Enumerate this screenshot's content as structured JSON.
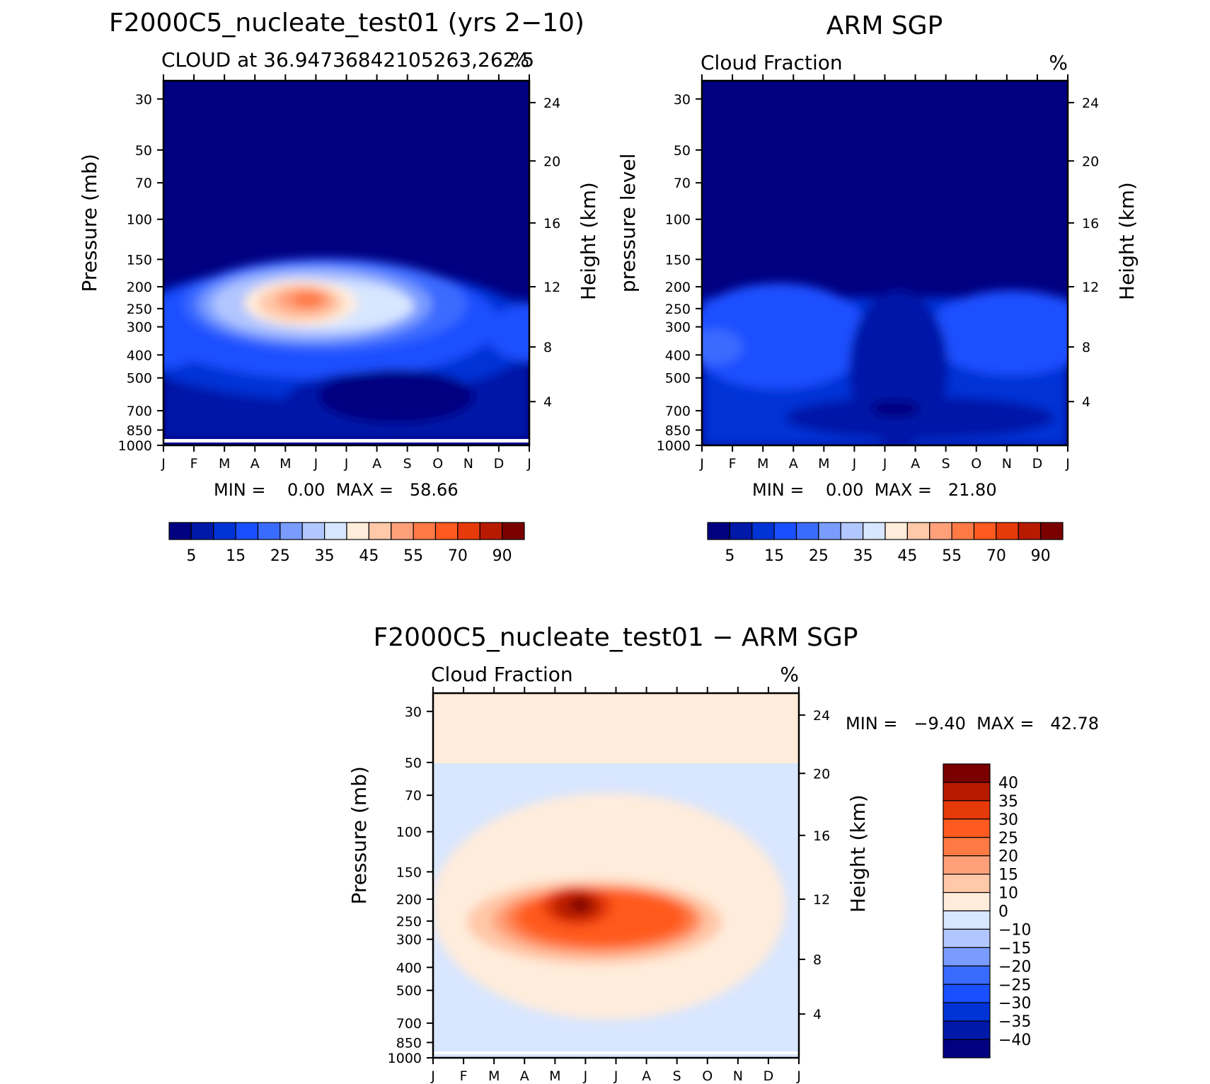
{
  "colors": {
    "abs_levels": [
      "#000080",
      "#0019a8",
      "#0033d6",
      "#1a4fff",
      "#3a6bff",
      "#7a9cff",
      "#b2c6ff",
      "#d8e6ff",
      "#ffecdb",
      "#ffc8a8",
      "#ffa07a",
      "#ff7a45",
      "#ff5a1f",
      "#e63a0a",
      "#b81a00",
      "#7a0000"
    ],
    "diff_levels": [
      "#000080",
      "#0019a8",
      "#0033d6",
      "#1a4fff",
      "#3a6bff",
      "#7a9cff",
      "#b2c6ff",
      "#d8e6ff",
      "#ffecdb",
      "#ffc8a8",
      "#ffa07a",
      "#ff7a45",
      "#ff5a1f",
      "#e63a0a",
      "#b81a00",
      "#7a0000"
    ]
  },
  "chart_data": [
    {
      "type": "heatmap",
      "title": "F2000C5_nucleate_test01 (yrs 2−10)",
      "subtitle_left": "CLOUD at 36.94736842105263,262.5",
      "subtitle_right": "%",
      "ylabel": "Pressure (mb)",
      "ylabel_right": "Height (km)",
      "x_ticks": [
        "J",
        "F",
        "M",
        "A",
        "M",
        "J",
        "J",
        "A",
        "S",
        "O",
        "N",
        "D",
        "J"
      ],
      "y_ticks": [
        "30",
        "50",
        "70",
        "100",
        "150",
        "200",
        "250",
        "300",
        "400",
        "500",
        "700",
        "850",
        "1000"
      ],
      "y_ticks_right": [
        "24",
        "20",
        "16",
        "12",
        "8",
        "4"
      ],
      "stats": "MIN =    0.00  MAX =   58.66",
      "colorbar_labels": [
        "5",
        "15",
        "25",
        "35",
        "45",
        "55",
        "70",
        "90"
      ],
      "peak_month": "Jun",
      "peak_pressure": 250,
      "peak_value": 58.66
    },
    {
      "type": "heatmap",
      "title": "ARM SGP",
      "subtitle_left": "Cloud Fraction",
      "subtitle_right": "%",
      "ylabel": "pressure level",
      "ylabel_right": "Height (km)",
      "x_ticks": [
        "J",
        "F",
        "M",
        "A",
        "M",
        "J",
        "J",
        "A",
        "S",
        "O",
        "N",
        "D",
        "J"
      ],
      "y_ticks": [
        "30",
        "50",
        "70",
        "100",
        "150",
        "200",
        "250",
        "300",
        "400",
        "500",
        "700",
        "850",
        "1000"
      ],
      "y_ticks_right": [
        "24",
        "20",
        "16",
        "12",
        "8",
        "4"
      ],
      "stats": "MIN =    0.00  MAX =   21.80",
      "colorbar_labels": [
        "5",
        "15",
        "25",
        "35",
        "45",
        "55",
        "70",
        "90"
      ]
    },
    {
      "type": "heatmap",
      "title": "F2000C5_nucleate_test01 − ARM SGP",
      "subtitle_left": "Cloud Fraction",
      "subtitle_right": "%",
      "ylabel": "Pressure (mb)",
      "ylabel_right": "Height (km)",
      "x_ticks": [
        "J",
        "F",
        "M",
        "A",
        "M",
        "J",
        "J",
        "A",
        "S",
        "O",
        "N",
        "D",
        "J"
      ],
      "y_ticks": [
        "30",
        "50",
        "70",
        "100",
        "150",
        "200",
        "250",
        "300",
        "400",
        "500",
        "700",
        "850",
        "1000"
      ],
      "y_ticks_right": [
        "24",
        "20",
        "16",
        "12",
        "8",
        "4"
      ],
      "stats": "MIN =   −9.40  MAX =   42.78",
      "colorbar_labels": [
        "40",
        "35",
        "30",
        "25",
        "20",
        "15",
        "10",
        "0",
        "−10",
        "−15",
        "−20",
        "−25",
        "−30",
        "−35",
        "−40"
      ],
      "peak_month": "Jun",
      "peak_pressure": 220,
      "peak_value": 42.78
    }
  ]
}
